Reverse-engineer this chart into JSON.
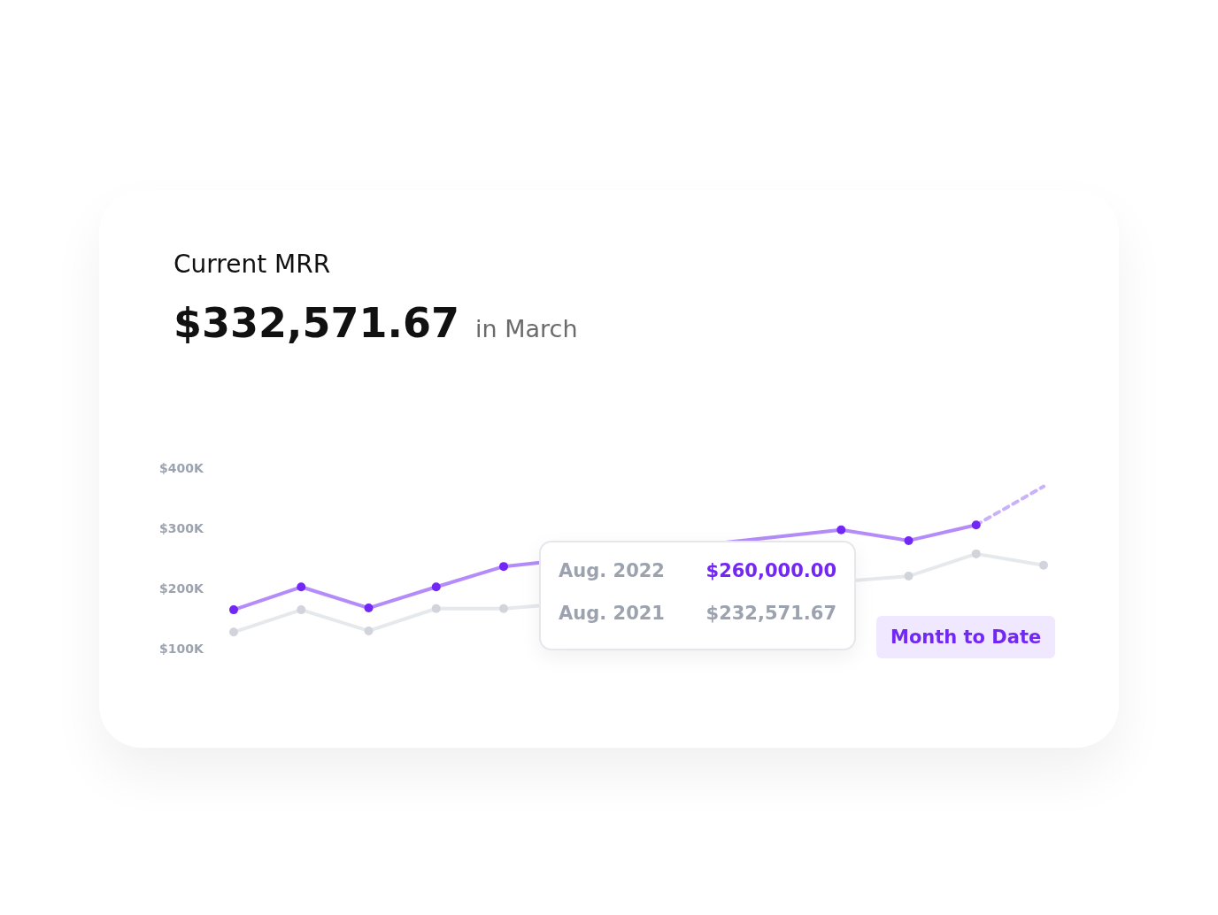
{
  "chart_data": {
    "type": "line",
    "title": "Current MRR",
    "subtitle": "$332,571.67",
    "annotations": [
      "in March",
      "Aug. 2022",
      "$260,000.00",
      "Aug. 2021",
      "$232,571.67",
      "Month to Date"
    ],
    "categories": [
      null,
      null,
      null,
      null,
      null,
      null,
      null,
      null,
      null,
      null,
      null,
      null,
      null
    ],
    "series": [
      {
        "color": "#7327f5",
        "values": [
          166,
          204,
          169,
          204,
          238,
          null,
          null,
          null,
          null,
          299,
          281,
          307,
          null
        ]
      },
      {
        "color": "#c9b2fb",
        "line_style": "dashed",
        "marker": "none",
        "values": [
          null,
          null,
          null,
          null,
          null,
          null,
          null,
          null,
          null,
          null,
          null,
          307,
          371
        ]
      },
      {
        "color": "#d1d5db",
        "values": [
          129,
          166,
          131,
          168,
          168,
          null,
          null,
          null,
          null,
          null,
          222,
          259,
          240
        ]
      }
    ],
    "ylim": [
      100,
      400
    ],
    "yticks": [
      {
        "value": 100,
        "label": "$100K"
      },
      {
        "value": 200,
        "label": "$200K"
      },
      {
        "value": 300,
        "label": "$300K"
      },
      {
        "value": 400,
        "label": "$400K"
      }
    ],
    "grid": false,
    "legend": false,
    "tick_labels": "y",
    "marker": "circle",
    "line_style": "solid"
  }
}
